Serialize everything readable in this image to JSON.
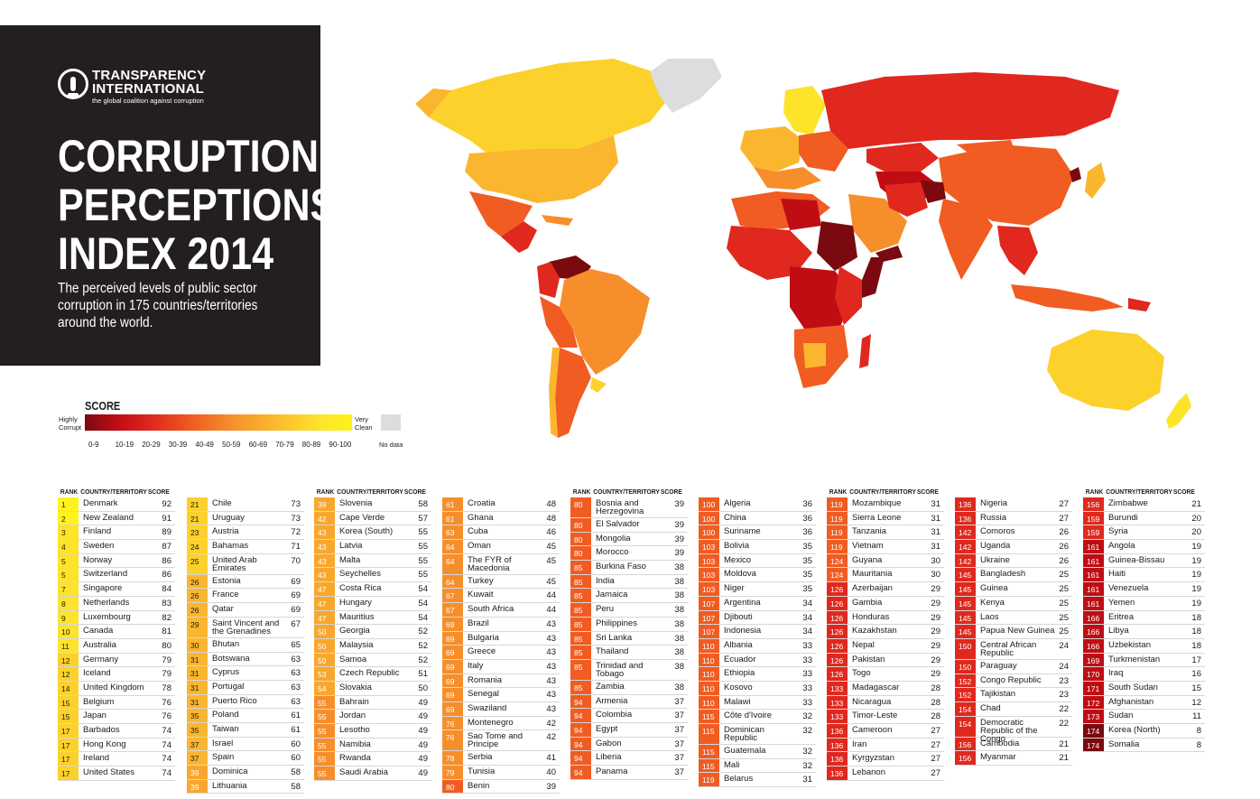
{
  "brand": {
    "line1": "TRANSPARENCY",
    "line2": "INTERNATIONAL",
    "tagline": "the global coalition against corruption"
  },
  "title": {
    "line1": "CORRUPTION",
    "line2": "PERCEPTIONS",
    "line3": "INDEX 2014"
  },
  "subtitle": "The perceived levels of public sector corruption in 175 countries/territories around the world.",
  "legend": {
    "title": "SCORE",
    "low_label": "Highly Corrupt",
    "high_label": "Very Clean",
    "ticks": [
      "0-9",
      "10-19",
      "20-29",
      "30-39",
      "40-49",
      "50-59",
      "60-69",
      "70-79",
      "80-89",
      "90-100"
    ],
    "no_data": "No data",
    "colors": [
      "#7a0a10",
      "#c00d14",
      "#e0281e",
      "#f05c22",
      "#f68f2b",
      "#f9a72c",
      "#fbb62f",
      "#fcd12c",
      "#fde42a",
      "#fff21d"
    ]
  },
  "headers": {
    "rank": "RANK",
    "country": "COUNTRY/TERRITORY",
    "score": "SCORE"
  },
  "chart_data": {
    "type": "table",
    "columns": [
      {
        "header": true,
        "rows": [
          [
            1,
            "Denmark",
            92
          ],
          [
            2,
            "New Zealand",
            91
          ],
          [
            3,
            "Finland",
            89
          ],
          [
            4,
            "Sweden",
            87
          ],
          [
            5,
            "Norway",
            86
          ],
          [
            5,
            "Switzerland",
            86
          ],
          [
            7,
            "Singapore",
            84
          ],
          [
            8,
            "Netherlands",
            83
          ],
          [
            9,
            "Luxembourg",
            82
          ],
          [
            10,
            "Canada",
            81
          ],
          [
            11,
            "Australia",
            80
          ],
          [
            12,
            "Germany",
            79
          ],
          [
            12,
            "Iceland",
            79
          ],
          [
            14,
            "United Kingdom",
            78
          ],
          [
            15,
            "Belgium",
            76
          ],
          [
            15,
            "Japan",
            76
          ],
          [
            17,
            "Barbados",
            74
          ],
          [
            17,
            "Hong Kong",
            74
          ],
          [
            17,
            "Ireland",
            74
          ],
          [
            17,
            "United States",
            74
          ]
        ]
      },
      {
        "header": false,
        "rows": [
          [
            21,
            "Chile",
            73
          ],
          [
            21,
            "Uruguay",
            73
          ],
          [
            23,
            "Austria",
            72
          ],
          [
            24,
            "Bahamas",
            71
          ],
          [
            25,
            "United Arab Emirates",
            70
          ],
          [
            26,
            "Estonia",
            69
          ],
          [
            26,
            "France",
            69
          ],
          [
            26,
            "Qatar",
            69
          ],
          [
            29,
            "Saint Vincent and the Grenadines",
            67
          ],
          [
            30,
            "Bhutan",
            65
          ],
          [
            31,
            "Botswana",
            63
          ],
          [
            31,
            "Cyprus",
            63
          ],
          [
            31,
            "Portugal",
            63
          ],
          [
            31,
            "Puerto Rico",
            63
          ],
          [
            35,
            "Poland",
            61
          ],
          [
            35,
            "Taiwan",
            61
          ],
          [
            37,
            "Israel",
            60
          ],
          [
            37,
            "Spain",
            60
          ],
          [
            39,
            "Dominica",
            58
          ],
          [
            39,
            "Lithuania",
            58
          ]
        ]
      },
      {
        "header": true,
        "rows": [
          [
            39,
            "Slovenia",
            58
          ],
          [
            42,
            "Cape Verde",
            57
          ],
          [
            43,
            "Korea (South)",
            55
          ],
          [
            43,
            "Latvia",
            55
          ],
          [
            43,
            "Malta",
            55
          ],
          [
            43,
            "Seychelles",
            55
          ],
          [
            47,
            "Costa Rica",
            54
          ],
          [
            47,
            "Hungary",
            54
          ],
          [
            47,
            "Mauritius",
            54
          ],
          [
            50,
            "Georgia",
            52
          ],
          [
            50,
            "Malaysia",
            52
          ],
          [
            50,
            "Samoa",
            52
          ],
          [
            53,
            "Czech Republic",
            51
          ],
          [
            54,
            "Slovakia",
            50
          ],
          [
            55,
            "Bahrain",
            49
          ],
          [
            55,
            "Jordan",
            49
          ],
          [
            55,
            "Lesotho",
            49
          ],
          [
            55,
            "Namibia",
            49
          ],
          [
            55,
            "Rwanda",
            49
          ],
          [
            55,
            "Saudi Arabia",
            49
          ]
        ]
      },
      {
        "header": false,
        "rows": [
          [
            61,
            "Croatia",
            48
          ],
          [
            61,
            "Ghana",
            48
          ],
          [
            63,
            "Cuba",
            46
          ],
          [
            64,
            "Oman",
            45
          ],
          [
            64,
            "The FYR of Macedonia",
            45
          ],
          [
            64,
            "Turkey",
            45
          ],
          [
            67,
            "Kuwait",
            44
          ],
          [
            67,
            "South Africa",
            44
          ],
          [
            69,
            "Brazil",
            43
          ],
          [
            69,
            "Bulgaria",
            43
          ],
          [
            69,
            "Greece",
            43
          ],
          [
            69,
            "Italy",
            43
          ],
          [
            69,
            "Romania",
            43
          ],
          [
            69,
            "Senegal",
            43
          ],
          [
            69,
            "Swaziland",
            43
          ],
          [
            76,
            "Montenegro",
            42
          ],
          [
            76,
            "Sao Tome and Principe",
            42
          ],
          [
            78,
            "Serbia",
            41
          ],
          [
            79,
            "Tunisia",
            40
          ],
          [
            80,
            "Benin",
            39
          ]
        ]
      },
      {
        "header": true,
        "rows": [
          [
            80,
            "Bosnia and Herzegovina",
            39
          ],
          [
            80,
            "El Salvador",
            39
          ],
          [
            80,
            "Mongolia",
            39
          ],
          [
            80,
            "Morocco",
            39
          ],
          [
            85,
            "Burkina Faso",
            38
          ],
          [
            85,
            "India",
            38
          ],
          [
            85,
            "Jamaica",
            38
          ],
          [
            85,
            "Peru",
            38
          ],
          [
            85,
            "Philippines",
            38
          ],
          [
            85,
            "Sri Lanka",
            38
          ],
          [
            85,
            "Thailand",
            38
          ],
          [
            85,
            "Trinidad and Tobago",
            38
          ],
          [
            85,
            "Zambia",
            38
          ],
          [
            94,
            "Armenia",
            37
          ],
          [
            94,
            "Colombia",
            37
          ],
          [
            94,
            "Egypt",
            37
          ],
          [
            94,
            "Gabon",
            37
          ],
          [
            94,
            "Liberia",
            37
          ],
          [
            94,
            "Panama",
            37
          ]
        ]
      },
      {
        "header": false,
        "rows": [
          [
            100,
            "Algeria",
            36
          ],
          [
            100,
            "China",
            36
          ],
          [
            100,
            "Suriname",
            36
          ],
          [
            103,
            "Bolivia",
            35
          ],
          [
            103,
            "Mexico",
            35
          ],
          [
            103,
            "Moldova",
            35
          ],
          [
            103,
            "Niger",
            35
          ],
          [
            107,
            "Argentina",
            34
          ],
          [
            107,
            "Djibouti",
            34
          ],
          [
            107,
            "Indonesia",
            34
          ],
          [
            110,
            "Albania",
            33
          ],
          [
            110,
            "Ecuador",
            33
          ],
          [
            110,
            "Ethiopia",
            33
          ],
          [
            110,
            "Kosovo",
            33
          ],
          [
            110,
            "Malawi",
            33
          ],
          [
            115,
            "Côte d'Ivoire",
            32
          ],
          [
            115,
            "Dominican Republic",
            32
          ],
          [
            115,
            "Guatemala",
            32
          ],
          [
            115,
            "Mali",
            32
          ],
          [
            119,
            "Belarus",
            31
          ]
        ]
      },
      {
        "header": true,
        "rows": [
          [
            119,
            "Mozambique",
            31
          ],
          [
            119,
            "Sierra Leone",
            31
          ],
          [
            119,
            "Tanzania",
            31
          ],
          [
            119,
            "Vietnam",
            31
          ],
          [
            124,
            "Guyana",
            30
          ],
          [
            124,
            "Mauritania",
            30
          ],
          [
            126,
            "Azerbaijan",
            29
          ],
          [
            126,
            "Gambia",
            29
          ],
          [
            126,
            "Honduras",
            29
          ],
          [
            126,
            "Kazakhstan",
            29
          ],
          [
            126,
            "Nepal",
            29
          ],
          [
            126,
            "Pakistan",
            29
          ],
          [
            126,
            "Togo",
            29
          ],
          [
            133,
            "Madagascar",
            28
          ],
          [
            133,
            "Nicaragua",
            28
          ],
          [
            133,
            "Timor-Leste",
            28
          ],
          [
            136,
            "Cameroon",
            27
          ],
          [
            136,
            "Iran",
            27
          ],
          [
            136,
            "Kyrgyzstan",
            27
          ],
          [
            136,
            "Lebanon",
            27
          ]
        ]
      },
      {
        "header": false,
        "rows": [
          [
            136,
            "Nigeria",
            27
          ],
          [
            136,
            "Russia",
            27
          ],
          [
            142,
            "Comoros",
            26
          ],
          [
            142,
            "Uganda",
            26
          ],
          [
            142,
            "Ukraine",
            26
          ],
          [
            145,
            "Bangladesh",
            25
          ],
          [
            145,
            "Guinea",
            25
          ],
          [
            145,
            "Kenya",
            25
          ],
          [
            145,
            "Laos",
            25
          ],
          [
            145,
            "Papua New Guinea",
            25
          ],
          [
            150,
            "Central African Republic",
            24
          ],
          [
            150,
            "Paraguay",
            24
          ],
          [
            152,
            "Congo Republic",
            23
          ],
          [
            152,
            "Tajikistan",
            23
          ],
          [
            154,
            "Chad",
            22
          ],
          [
            154,
            "Democratic Republic of the Congo",
            22
          ],
          [
            156,
            "Cambodia",
            21
          ],
          [
            156,
            "Myanmar",
            21
          ]
        ]
      },
      {
        "header": true,
        "rows": [
          [
            156,
            "Zimbabwe",
            21
          ],
          [
            159,
            "Burundi",
            20
          ],
          [
            159,
            "Syria",
            20
          ],
          [
            161,
            "Angola",
            19
          ],
          [
            161,
            "Guinea-Bissau",
            19
          ],
          [
            161,
            "Haiti",
            19
          ],
          [
            161,
            "Venezuela",
            19
          ],
          [
            161,
            "Yemen",
            19
          ],
          [
            166,
            "Eritrea",
            18
          ],
          [
            166,
            "Libya",
            18
          ],
          [
            166,
            "Uzbekistan",
            18
          ],
          [
            169,
            "Turkmenistan",
            17
          ],
          [
            170,
            "Iraq",
            16
          ],
          [
            171,
            "South Sudan",
            15
          ],
          [
            172,
            "Afghanistan",
            12
          ],
          [
            173,
            "Sudan",
            11
          ],
          [
            174,
            "Korea (North)",
            8
          ],
          [
            174,
            "Somalia",
            8
          ]
        ]
      }
    ]
  }
}
